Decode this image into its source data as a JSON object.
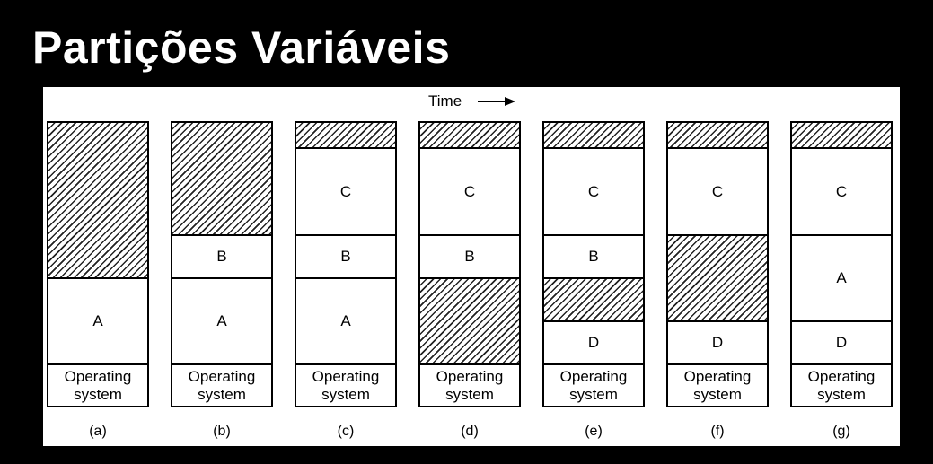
{
  "title": "Partições Variáveis",
  "time_label": "Time",
  "os_label_line1": "Operating",
  "os_label_line2": "system",
  "colors": {
    "background": "#000000",
    "panel": "#ffffff",
    "ink": "#000000"
  },
  "columns": [
    {
      "caption": "(a)",
      "segments": [
        {
          "type": "hole",
          "from": 0,
          "to": 174
        },
        {
          "type": "proc",
          "label": "A",
          "from": 174,
          "to": 270
        },
        {
          "type": "os",
          "from": 270,
          "to": 315
        }
      ]
    },
    {
      "caption": "(b)",
      "segments": [
        {
          "type": "hole",
          "from": 0,
          "to": 126
        },
        {
          "type": "proc",
          "label": "B",
          "from": 126,
          "to": 174
        },
        {
          "type": "proc",
          "label": "A",
          "from": 174,
          "to": 270
        },
        {
          "type": "os",
          "from": 270,
          "to": 315
        }
      ]
    },
    {
      "caption": "(c)",
      "segments": [
        {
          "type": "hole",
          "from": 0,
          "to": 29
        },
        {
          "type": "proc",
          "label": "C",
          "from": 29,
          "to": 126
        },
        {
          "type": "proc",
          "label": "B",
          "from": 126,
          "to": 174
        },
        {
          "type": "proc",
          "label": "A",
          "from": 174,
          "to": 270
        },
        {
          "type": "os",
          "from": 270,
          "to": 315
        }
      ]
    },
    {
      "caption": "(d)",
      "segments": [
        {
          "type": "hole",
          "from": 0,
          "to": 29
        },
        {
          "type": "proc",
          "label": "C",
          "from": 29,
          "to": 126
        },
        {
          "type": "proc",
          "label": "B",
          "from": 126,
          "to": 174
        },
        {
          "type": "hole",
          "from": 174,
          "to": 270
        },
        {
          "type": "os",
          "from": 270,
          "to": 315
        }
      ]
    },
    {
      "caption": "(e)",
      "segments": [
        {
          "type": "hole",
          "from": 0,
          "to": 29
        },
        {
          "type": "proc",
          "label": "C",
          "from": 29,
          "to": 126
        },
        {
          "type": "proc",
          "label": "B",
          "from": 126,
          "to": 174
        },
        {
          "type": "hole",
          "from": 174,
          "to": 222
        },
        {
          "type": "proc",
          "label": "D",
          "from": 222,
          "to": 270
        },
        {
          "type": "os",
          "from": 270,
          "to": 315
        }
      ]
    },
    {
      "caption": "(f)",
      "segments": [
        {
          "type": "hole",
          "from": 0,
          "to": 29
        },
        {
          "type": "proc",
          "label": "C",
          "from": 29,
          "to": 126
        },
        {
          "type": "hole",
          "from": 126,
          "to": 222
        },
        {
          "type": "proc",
          "label": "D",
          "from": 222,
          "to": 270
        },
        {
          "type": "os",
          "from": 270,
          "to": 315
        }
      ]
    },
    {
      "caption": "(g)",
      "segments": [
        {
          "type": "hole",
          "from": 0,
          "to": 29
        },
        {
          "type": "proc",
          "label": "C",
          "from": 29,
          "to": 126
        },
        {
          "type": "proc",
          "label": "A",
          "from": 126,
          "to": 222
        },
        {
          "type": "proc",
          "label": "D",
          "from": 222,
          "to": 270
        },
        {
          "type": "os",
          "from": 270,
          "to": 315
        }
      ]
    }
  ]
}
